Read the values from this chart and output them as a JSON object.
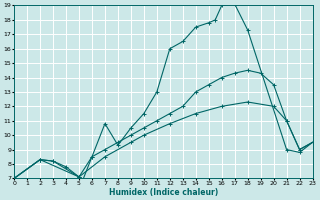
{
  "xlabel": "Humidex (Indice chaleur)",
  "xlim": [
    0,
    23
  ],
  "ylim": [
    7,
    19
  ],
  "xticks": [
    0,
    1,
    2,
    3,
    4,
    5,
    6,
    7,
    8,
    9,
    10,
    11,
    12,
    13,
    14,
    15,
    16,
    17,
    18,
    19,
    20,
    21,
    22,
    23
  ],
  "yticks": [
    7,
    8,
    9,
    10,
    11,
    12,
    13,
    14,
    15,
    16,
    17,
    18,
    19
  ],
  "bg_color": "#cce8e8",
  "line_color": "#006666",
  "grid_color": "#ffffff",
  "series": [
    {
      "x": [
        0,
        2,
        3,
        4,
        5,
        5.3,
        6,
        7,
        8,
        9,
        10,
        11,
        12,
        13,
        14,
        15,
        15.5,
        16,
        17,
        18,
        21,
        22,
        23
      ],
      "y": [
        7,
        8.3,
        8.2,
        7.8,
        7.1,
        6.9,
        8.5,
        10.8,
        9.3,
        10.5,
        11.5,
        13.0,
        16.0,
        16.5,
        17.5,
        17.8,
        18.0,
        19.0,
        19.1,
        17.3,
        9.0,
        8.8,
        9.5
      ]
    },
    {
      "x": [
        0,
        2,
        3,
        5,
        6,
        7,
        8,
        9,
        10,
        11,
        12,
        13,
        14,
        15,
        16,
        17,
        18,
        19,
        20,
        21,
        22,
        23
      ],
      "y": [
        7,
        8.3,
        8.2,
        7.1,
        8.5,
        9.0,
        9.5,
        10.0,
        10.5,
        11.0,
        11.5,
        12.0,
        13.0,
        13.5,
        14.0,
        14.3,
        14.5,
        14.3,
        13.5,
        11.0,
        9.0,
        9.5
      ]
    },
    {
      "x": [
        0,
        2,
        5,
        7,
        9,
        10,
        12,
        14,
        16,
        18,
        20,
        21,
        22,
        23
      ],
      "y": [
        7,
        8.3,
        7.1,
        8.5,
        9.5,
        10.0,
        10.8,
        11.5,
        12.0,
        12.3,
        12.0,
        11.0,
        9.0,
        9.5
      ]
    }
  ]
}
